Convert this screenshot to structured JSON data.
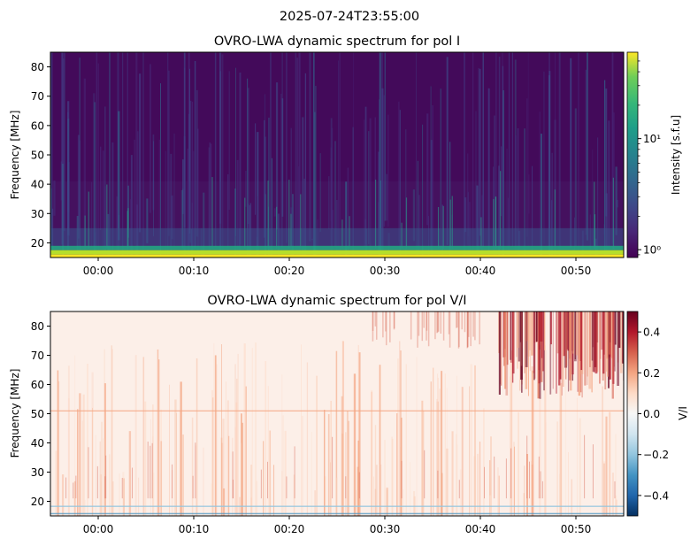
{
  "figure": {
    "suptitle": "2025-07-24T23:55:00"
  },
  "chart_data": [
    {
      "type": "heatmap",
      "title": "OVRO-LWA dynamic spectrum for pol I",
      "xlabel": "",
      "ylabel": "Frequency [MHz]",
      "xlim": [
        "23:55",
        "00:55"
      ],
      "ylim": [
        15,
        85
      ],
      "x_ticks": [
        "00:00",
        "00:10",
        "00:20",
        "00:30",
        "00:40",
        "00:50"
      ],
      "y_ticks": [
        20,
        30,
        40,
        50,
        60,
        70,
        80
      ],
      "colormap": "viridis",
      "color_scale": "log",
      "colorbar": {
        "label": "Intensity [s.f.u]",
        "ticks": [
          "10⁰",
          "10¹"
        ],
        "range": [
          0.85,
          60
        ]
      },
      "features": {
        "background_level_sfu": 1.2,
        "bright_band_mhz": [
          15,
          17
        ],
        "raised_emission_below_mhz": 41
      }
    },
    {
      "type": "heatmap",
      "title": "OVRO-LWA dynamic spectrum for pol V/I",
      "xlabel": "",
      "ylabel": "Frequency [MHz]",
      "xlim": [
        "23:55",
        "00:55"
      ],
      "ylim": [
        15,
        85
      ],
      "x_ticks": [
        "00:00",
        "00:10",
        "00:20",
        "00:30",
        "00:40",
        "00:50"
      ],
      "y_ticks": [
        20,
        30,
        40,
        50,
        60,
        70,
        80
      ],
      "colormap": "RdBu_r",
      "color_scale": "linear",
      "colorbar": {
        "label": "V/I",
        "ticks": [
          "−0.4",
          "−0.2",
          "0.0",
          "0.2",
          "0.4"
        ],
        "range": [
          -0.5,
          0.5
        ]
      },
      "features": {
        "background_level": 0.05,
        "strong_positive_region": "upper right, 60-85 MHz after 00:45",
        "horizontal_line_mhz": 51
      }
    }
  ]
}
